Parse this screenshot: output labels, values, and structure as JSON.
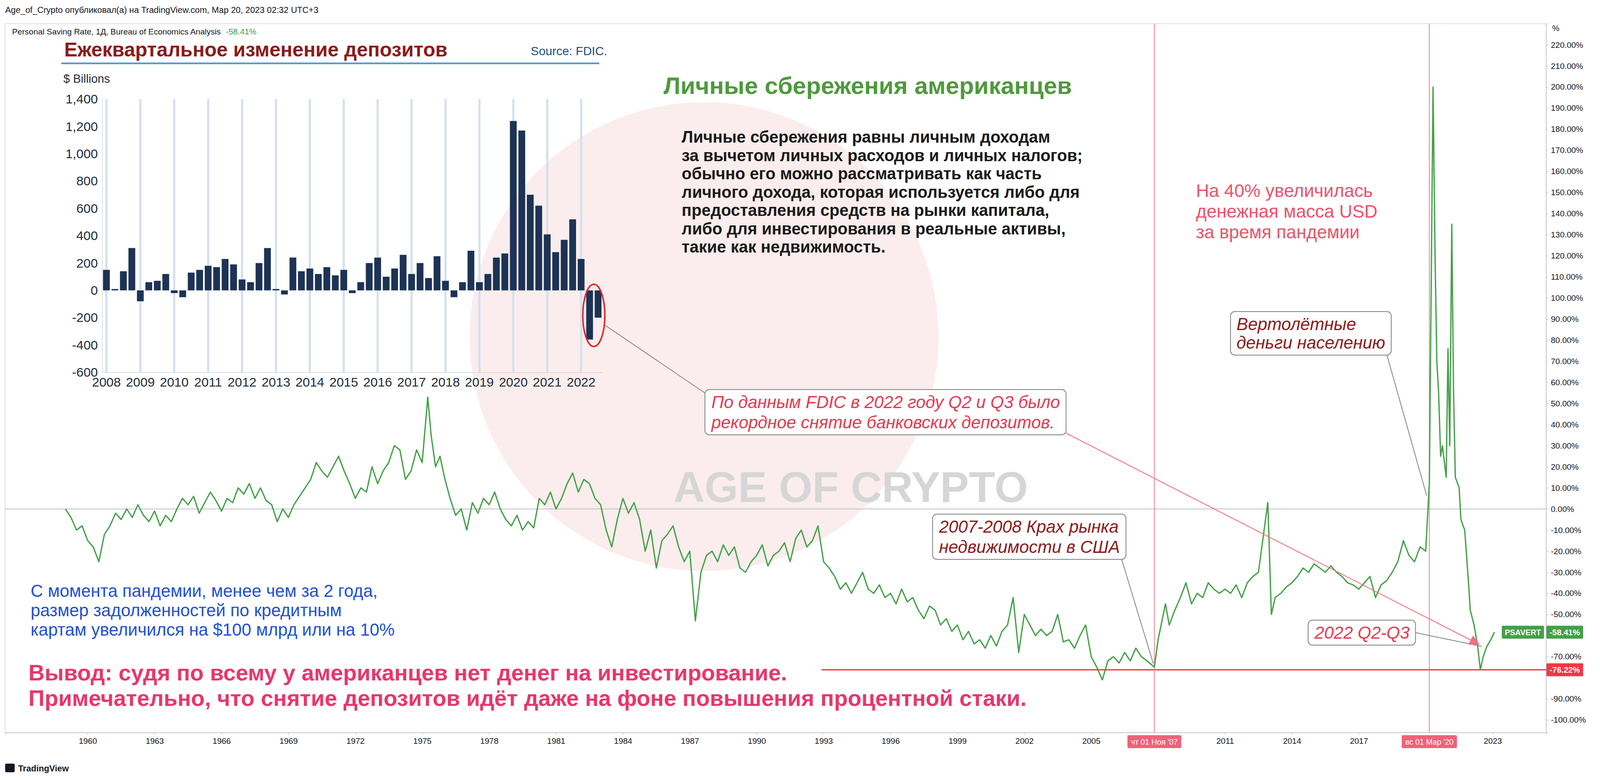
{
  "chart_data": [
    {
      "type": "line",
      "title": "Личные сбережения американцев",
      "subtitle": "Personal Saving Rate, 1Д, Bureau of Economics Analysis",
      "credit": "Age_of_Crypto опубликовал(а) на TradingView.com, Мар 20, 2023 02:32 UTC+3",
      "watermark": "AGE OF CRYPTO",
      "footer": "TradingView",
      "ylabel": "%",
      "x": [
        1959,
        1959.25,
        1959.5,
        1959.75,
        1960,
        1960.25,
        1960.5,
        1960.75,
        1961,
        1961.25,
        1961.5,
        1961.75,
        1962,
        1962.25,
        1962.5,
        1962.75,
        1963,
        1963.25,
        1963.5,
        1963.75,
        1964,
        1964.25,
        1964.5,
        1964.75,
        1965,
        1965.25,
        1965.5,
        1965.75,
        1966,
        1966.25,
        1966.5,
        1966.75,
        1967,
        1967.25,
        1967.5,
        1967.75,
        1968,
        1968.25,
        1968.5,
        1968.75,
        1969,
        1969.25,
        1969.5,
        1969.75,
        1970,
        1970.25,
        1970.5,
        1970.75,
        1971,
        1971.25,
        1971.5,
        1971.75,
        1972,
        1972.25,
        1972.5,
        1972.75,
        1973,
        1973.25,
        1973.5,
        1973.75,
        1974,
        1974.25,
        1974.5,
        1974.75,
        1975,
        1975.25,
        1975.4,
        1975.6,
        1975.8,
        1976,
        1976.25,
        1976.5,
        1976.75,
        1977,
        1977.25,
        1977.5,
        1977.75,
        1978,
        1978.25,
        1978.5,
        1978.75,
        1979,
        1979.25,
        1979.5,
        1979.75,
        1980,
        1980.25,
        1980.5,
        1980.75,
        1981,
        1981.25,
        1981.5,
        1981.75,
        1982,
        1982.25,
        1982.5,
        1982.75,
        1983,
        1983.25,
        1983.5,
        1983.75,
        1984,
        1984.25,
        1984.5,
        1984.75,
        1985,
        1985.25,
        1985.5,
        1985.75,
        1986,
        1986.25,
        1986.5,
        1986.75,
        1987,
        1987.25,
        1987.5,
        1987.75,
        1988,
        1988.25,
        1988.5,
        1988.75,
        1989,
        1989.25,
        1989.5,
        1989.75,
        1990,
        1990.25,
        1990.5,
        1990.75,
        1991,
        1991.25,
        1991.5,
        1991.75,
        1992,
        1992.25,
        1992.5,
        1992.75,
        1993,
        1993.25,
        1993.5,
        1993.75,
        1994,
        1994.25,
        1994.5,
        1994.75,
        1995,
        1995.25,
        1995.5,
        1995.75,
        1996,
        1996.25,
        1996.5,
        1996.75,
        1997,
        1997.25,
        1997.5,
        1997.75,
        1998,
        1998.25,
        1998.5,
        1998.75,
        1999,
        1999.25,
        1999.5,
        1999.75,
        2000,
        2000.25,
        2000.5,
        2000.75,
        2001,
        2001.25,
        2001.5,
        2001.75,
        2002,
        2002.25,
        2002.5,
        2002.75,
        2003,
        2003.25,
        2003.5,
        2003.75,
        2004,
        2004.25,
        2004.5,
        2004.75,
        2005,
        2005.25,
        2005.5,
        2005.75,
        2006,
        2006.25,
        2006.5,
        2006.75,
        2007,
        2007.25,
        2007.5,
        2007.833,
        2008,
        2008.33,
        2008.5,
        2008.75,
        2009,
        2009.25,
        2009.5,
        2009.75,
        2010,
        2010.25,
        2010.5,
        2010.75,
        2011,
        2011.25,
        2011.5,
        2011.75,
        2012,
        2012.25,
        2012.5,
        2012.92,
        2013.08,
        2013.25,
        2013.5,
        2013.75,
        2014,
        2014.25,
        2014.5,
        2014.75,
        2015,
        2015.25,
        2015.5,
        2015.75,
        2016,
        2016.25,
        2016.5,
        2016.75,
        2017,
        2017.25,
        2017.5,
        2017.75,
        2018,
        2018.25,
        2018.5,
        2018.75,
        2019,
        2019.25,
        2019.5,
        2019.75,
        2020,
        2020.164,
        2020.33,
        2020.42,
        2020.5,
        2020.58,
        2020.67,
        2020.75,
        2020.92,
        2021,
        2021.08,
        2021.17,
        2021.25,
        2021.33,
        2021.5,
        2021.58,
        2021.75,
        2021.92,
        2022,
        2022.17,
        2022.33,
        2022.45,
        2022.58,
        2022.75,
        2022.92,
        2023.08
      ],
      "series": [
        {
          "name": "PSAVERT",
          "color": "#43a047",
          "last_value_label": "-58.41%",
          "values": [
            0,
            -4,
            -10,
            -8,
            -15,
            -18,
            -25,
            -12,
            -8,
            -2,
            -5,
            0,
            -4,
            2,
            -3,
            -6,
            -1,
            -8,
            -3,
            -6,
            0,
            5,
            2,
            6,
            -2,
            3,
            8,
            4,
            -1,
            5,
            3,
            10,
            7,
            12,
            5,
            10,
            4,
            2,
            -6,
            0,
            -4,
            2,
            6,
            10,
            14,
            22,
            18,
            15,
            20,
            25,
            18,
            12,
            5,
            10,
            8,
            20,
            12,
            18,
            22,
            30,
            28,
            14,
            18,
            28,
            22,
            53,
            35,
            20,
            25,
            15,
            5,
            -3,
            0,
            -10,
            3,
            -2,
            5,
            2,
            8,
            0,
            -5,
            -8,
            -3,
            -10,
            -6,
            -9,
            5,
            2,
            8,
            0,
            5,
            12,
            17,
            8,
            14,
            12,
            5,
            2,
            -10,
            -18,
            -5,
            5,
            -2,
            3,
            -5,
            -20,
            -10,
            -28,
            -15,
            -12,
            -8,
            -18,
            -25,
            -20,
            -53,
            -30,
            -22,
            -20,
            -25,
            -17,
            -22,
            -18,
            -28,
            -30,
            -25,
            -22,
            -17,
            -27,
            -22,
            -20,
            -16,
            -25,
            -14,
            -10,
            -18,
            -15,
            -8,
            -25,
            -28,
            -32,
            -38,
            -35,
            -40,
            -35,
            -30,
            -38,
            -40,
            -36,
            -42,
            -40,
            -45,
            -38,
            -44,
            -42,
            -48,
            -52,
            -46,
            -48,
            -55,
            -52,
            -58,
            -55,
            -62,
            -58,
            -64,
            -62,
            -66,
            -60,
            -65,
            -58,
            -55,
            -42,
            -68,
            -50,
            -55,
            -60,
            -57,
            -60,
            -58,
            -50,
            -63,
            -62,
            -66,
            -60,
            -55,
            -70,
            -75,
            -81,
            -72,
            -70,
            -73,
            -68,
            -72,
            -66,
            -70,
            -72,
            -75,
            -62,
            -45,
            -55,
            -48,
            -42,
            -35,
            -45,
            -40,
            -42,
            -35,
            -38,
            -40,
            -38,
            -40,
            -36,
            -42,
            -35,
            -32,
            -30,
            3,
            -50,
            -42,
            -40,
            -37,
            -35,
            -32,
            -28,
            -30,
            -26,
            -28,
            -30,
            -27,
            -30,
            -32,
            -35,
            -36,
            -38,
            -35,
            -32,
            -42,
            -36,
            -34,
            -30,
            -25,
            -15,
            -22,
            -25,
            -18,
            -20,
            12,
            200,
            120,
            70,
            55,
            25,
            30,
            15,
            76,
            30,
            135,
            55,
            15,
            10,
            -5,
            -10,
            -35,
            -48,
            -55,
            -65,
            -76.22,
            -70,
            -65,
            -62,
            -58.41
          ]
        }
      ],
      "xlim": [
        1956.3,
        2025.4
      ],
      "xticks": [
        1960,
        1963,
        1966,
        1969,
        1972,
        1975,
        1978,
        1981,
        1984,
        1987,
        1990,
        1993,
        1996,
        1999,
        2002,
        2005,
        2011,
        2014,
        2017,
        2023
      ],
      "ylim": [
        -106,
        230
      ],
      "yticks": [
        {
          "value": 220,
          "label": "220.00%"
        },
        {
          "value": 210,
          "label": "210.00%"
        },
        {
          "value": 200,
          "label": "200.00%"
        },
        {
          "value": 190,
          "label": "190.00%"
        },
        {
          "value": 180,
          "label": "180.00%"
        },
        {
          "value": 170,
          "label": "170.00%"
        },
        {
          "value": 160,
          "label": "160.00%"
        },
        {
          "value": 150,
          "label": "150.00%"
        },
        {
          "value": 140,
          "label": "140.00%"
        },
        {
          "value": 130,
          "label": "130.00%"
        },
        {
          "value": 120,
          "label": "120.00%"
        },
        {
          "value": 110,
          "label": "110.00%"
        },
        {
          "value": 100,
          "label": "100.00%"
        },
        {
          "value": 90,
          "label": "90.00%"
        },
        {
          "value": 80,
          "label": "80.00%"
        },
        {
          "value": 70,
          "label": "70.00%"
        },
        {
          "value": 60,
          "label": "60.00%"
        },
        {
          "value": 50,
          "label": "50.00%"
        },
        {
          "value": 40,
          "label": "40.00%"
        },
        {
          "value": 30,
          "label": "30.00%"
        },
        {
          "value": 20,
          "label": "20.00%"
        },
        {
          "value": 10,
          "label": "10.00%"
        },
        {
          "value": 0,
          "label": "0.00%"
        },
        {
          "value": -10,
          "label": "-10.00%"
        },
        {
          "value": -20,
          "label": "-20.00%"
        },
        {
          "value": -30,
          "label": "-30.00%"
        },
        {
          "value": -40,
          "label": "-40.00%"
        },
        {
          "value": -50,
          "label": "-50.00%"
        },
        {
          "value": -70,
          "label": "-70.00%"
        },
        {
          "value": -90,
          "label": "-90.00%"
        },
        {
          "value": -100,
          "label": "-100.00%"
        }
      ],
      "grid": false,
      "hlines": [
        {
          "value": 0,
          "color": "#b2b5be"
        },
        {
          "value": -76.22,
          "label": "-76.22%",
          "color": "#f23645"
        }
      ],
      "vlines": [
        {
          "value": 2007.833,
          "label": "чт 01 Ноя '07"
        },
        {
          "value": 2020.164,
          "label": "вс 01 Мар '20"
        }
      ],
      "annotations": [
        {
          "color": "#1a1a1a",
          "text": [
            "Личные сбережения равны личным доходам",
            "за вычетом личных расходов и личных налогов;",
            "обычно его можно рассматривать как часть",
            "личного дохода, которая используется либо для",
            "предоставления средств на рынки капитала,",
            "либо для инвестирования в реальные активы,",
            "такие как недвижимость."
          ]
        },
        {
          "color": "#f0506a",
          "text": [
            "На 40% увеличилась",
            "денежная масса USD",
            "за время пандемии"
          ]
        },
        {
          "color": "#8b1a1a",
          "text": [
            "Вертолётные",
            "деньги населению"
          ]
        },
        {
          "color": "#e8384f",
          "text": [
            "По данным FDIC в 2022 году Q2 и Q3 было",
            "рекордное снятие банковских депозитов."
          ]
        },
        {
          "color": "#8b1a1a",
          "text": [
            "2007-2008 Крах рынка",
            "недвижимости в США"
          ]
        },
        {
          "color": "#e8384f",
          "text": [
            "2022 Q2-Q3"
          ]
        },
        {
          "color": "#1e4fd8",
          "text": [
            "С момента пандемии, менее чем за 2 года,",
            "размер задолженностей по кредитным",
            "картам увеличился на $100 млрд или на 10%"
          ]
        },
        {
          "color": "#e8366b",
          "text": [
            "Вывод: судя по всему у американцев нет денег на инвестирование.",
            "Примечательно, что снятие депозитов идёт даже на фоне повышения процентной стаки."
          ]
        }
      ]
    },
    {
      "type": "bar",
      "title": "Ежеквартальное изменение депозитов",
      "source": "Source: FDIC.",
      "ylabel": "$ Billions",
      "categories": [
        "2008",
        null,
        null,
        null,
        "2009",
        null,
        null,
        null,
        "2010",
        null,
        null,
        null,
        "2011",
        null,
        null,
        null,
        "2012",
        null,
        null,
        null,
        "2013",
        null,
        null,
        null,
        "2014",
        null,
        null,
        null,
        "2015",
        null,
        null,
        null,
        "2016",
        null,
        null,
        null,
        "2017",
        null,
        null,
        null,
        "2018",
        null,
        null,
        null,
        "2019",
        null,
        null,
        null,
        "2020",
        null,
        null,
        null,
        "2021",
        null,
        null,
        null,
        "2022",
        null,
        null
      ],
      "values": [
        150,
        10,
        140,
        310,
        -80,
        60,
        70,
        120,
        -20,
        -50,
        130,
        150,
        180,
        170,
        230,
        190,
        80,
        60,
        200,
        310,
        10,
        -30,
        240,
        140,
        160,
        120,
        170,
        110,
        150,
        -20,
        60,
        200,
        240,
        100,
        160,
        260,
        120,
        200,
        90,
        250,
        70,
        -50,
        60,
        290,
        60,
        120,
        240,
        270,
        1240,
        1170,
        700,
        620,
        410,
        280,
        370,
        520,
        230,
        -360,
        -200
      ],
      "color": "#1c3355",
      "ylim": [
        -600,
        1400
      ],
      "yticks": [
        -600,
        -400,
        -200,
        0,
        200,
        400,
        600,
        800,
        {
          "value": 1000,
          "label": "1,000"
        },
        {
          "value": 1200,
          "label": "1,200"
        },
        {
          "value": 1400,
          "label": "1,400"
        }
      ],
      "grid": true
    }
  ]
}
